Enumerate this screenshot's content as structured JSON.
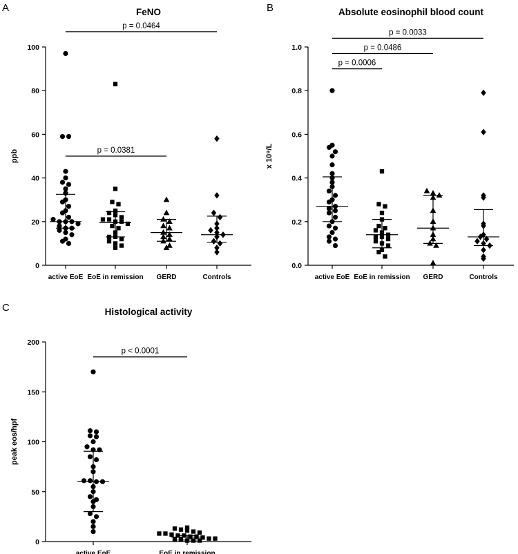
{
  "chart_data": [
    {
      "panel": "A",
      "type": "scatter",
      "title": "FeNO",
      "ylabel": "ppb",
      "ylim": [
        0,
        100
      ],
      "yticks": [
        0,
        20,
        40,
        60,
        80,
        100
      ],
      "categories": [
        "active EoE",
        "EoE in remission",
        "GERD",
        "Controls"
      ],
      "markers": [
        "circle",
        "square",
        "triangle",
        "diamond"
      ],
      "points": [
        [
          97,
          59,
          59,
          43,
          40,
          38,
          37,
          35,
          33,
          30,
          29,
          27,
          25,
          24,
          22,
          21,
          20,
          20,
          20,
          19,
          18,
          17,
          17,
          16,
          15,
          14,
          12,
          11,
          10
        ],
        [
          83,
          35,
          29,
          28,
          25,
          24,
          23,
          22,
          21,
          21,
          20,
          20,
          19,
          18,
          17,
          15,
          13,
          13,
          12,
          11,
          10,
          9,
          8
        ],
        [
          30,
          24,
          21,
          20,
          18,
          17,
          15,
          14,
          13,
          12,
          11,
          9,
          8
        ],
        [
          58,
          32,
          24,
          22,
          19,
          17,
          16,
          15,
          14,
          13,
          11,
          10,
          8,
          6
        ]
      ],
      "median": [
        20,
        19.5,
        15,
        14
      ],
      "iqr": [
        [
          17,
          32.5
        ],
        [
          13,
          24.5
        ],
        [
          11,
          21
        ],
        [
          10.5,
          22.5
        ]
      ],
      "comparisons": [
        {
          "from": 0,
          "to": 2,
          "value": 50,
          "label": "p = 0.0381"
        },
        {
          "from": 0,
          "to": 3,
          "value": 107,
          "label": "p = 0.0464"
        }
      ]
    },
    {
      "panel": "B",
      "type": "scatter",
      "title": "Absolute eosinophil blood count",
      "ylabel": "x 10⁹/L",
      "ylim": [
        0,
        1.0
      ],
      "yticks": [
        0.0,
        0.2,
        0.4,
        0.6,
        0.8,
        1.0
      ],
      "tick_format": "fixed1",
      "categories": [
        "active EoE",
        "EoE in remission",
        "GERD",
        "Controls"
      ],
      "markers": [
        "circle",
        "square",
        "triangle",
        "diamond"
      ],
      "points": [
        [
          0.8,
          0.55,
          0.54,
          0.52,
          0.5,
          0.46,
          0.42,
          0.4,
          0.38,
          0.36,
          0.34,
          0.32,
          0.3,
          0.29,
          0.27,
          0.26,
          0.25,
          0.24,
          0.22,
          0.2,
          0.18,
          0.17,
          0.15,
          0.13,
          0.12,
          0.11,
          0.09
        ],
        [
          0.43,
          0.28,
          0.27,
          0.24,
          0.21,
          0.18,
          0.17,
          0.16,
          0.15,
          0.14,
          0.13,
          0.13,
          0.12,
          0.11,
          0.1,
          0.09,
          0.07,
          0.06,
          0.04
        ],
        [
          0.34,
          0.33,
          0.32,
          0.31,
          0.25,
          0.2,
          0.17,
          0.14,
          0.12,
          0.1,
          0.09,
          0.01
        ],
        [
          0.79,
          0.61,
          0.32,
          0.31,
          0.19,
          0.18,
          0.14,
          0.13,
          0.12,
          0.11,
          0.1,
          0.09,
          0.07,
          0.04,
          0.03
        ]
      ],
      "median": [
        0.27,
        0.14,
        0.17,
        0.13
      ],
      "iqr": [
        [
          0.2,
          0.405
        ],
        [
          0.08,
          0.21
        ],
        [
          0.1,
          0.32
        ],
        [
          0.09,
          0.255
        ]
      ],
      "comparisons": [
        {
          "from": 0,
          "to": 1,
          "value": 0.9,
          "label": "p = 0.0006"
        },
        {
          "from": 0,
          "to": 2,
          "value": 0.97,
          "label": "p = 0.0486"
        },
        {
          "from": 0,
          "to": 3,
          "value": 1.04,
          "label": "p = 0.0033"
        }
      ]
    },
    {
      "panel": "C",
      "type": "scatter",
      "title": "Histological activity",
      "ylabel": "peak eos/hpf",
      "ylim": [
        0,
        200
      ],
      "yticks": [
        0,
        50,
        100,
        150,
        200
      ],
      "categories": [
        "active EoE",
        "EoE in remission"
      ],
      "markers": [
        "circle",
        "square"
      ],
      "points": [
        [
          170,
          111,
          110,
          106,
          105,
          100,
          95,
          92,
          92,
          85,
          82,
          75,
          70,
          61,
          61,
          60,
          60,
          55,
          50,
          45,
          42,
          40,
          35,
          28,
          25,
          20,
          15,
          10
        ],
        [
          14,
          13,
          12,
          11,
          10,
          9,
          8,
          8,
          7,
          6,
          6,
          5,
          5,
          4,
          3,
          3,
          2,
          2,
          1,
          1,
          1
        ]
      ],
      "median": [
        60,
        4.5
      ],
      "iqr": [
        [
          30,
          90.5
        ],
        [
          1.5,
          6
        ]
      ],
      "comparisons": [
        {
          "from": 0,
          "to": 1,
          "value": 185,
          "label": "p < 0.0001"
        }
      ]
    }
  ]
}
